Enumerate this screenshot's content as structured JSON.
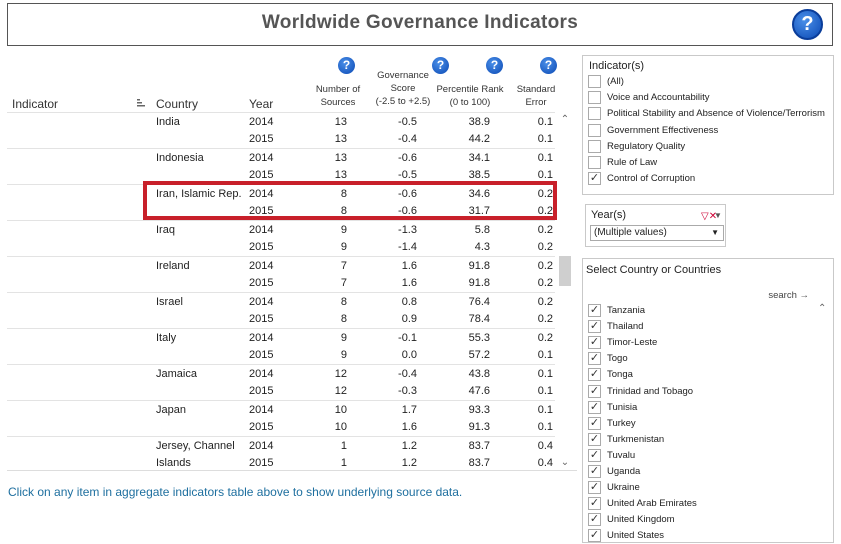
{
  "header": {
    "title": "Worldwide Governance Indicators",
    "help": "?"
  },
  "table": {
    "col_indicator": "Indicator",
    "col_country": "Country",
    "col_year": "Year",
    "col_num_sources": [
      "Number of",
      "Sources"
    ],
    "col_score": [
      "Governance",
      "Score",
      "(-2.5 to +2.5)"
    ],
    "col_pct": [
      "Percentile Rank",
      "(0 to 100)"
    ],
    "col_se": [
      "Standard",
      "Error"
    ],
    "rows": [
      {
        "country": "India",
        "year": "2014",
        "num": "13",
        "score": "-0.5",
        "pct": "38.9",
        "se": "0.1"
      },
      {
        "country": "",
        "year": "2015",
        "num": "13",
        "score": "-0.4",
        "pct": "44.2",
        "se": "0.1"
      },
      {
        "country": "Indonesia",
        "year": "2014",
        "num": "13",
        "score": "-0.6",
        "pct": "34.1",
        "se": "0.1"
      },
      {
        "country": "",
        "year": "2015",
        "num": "13",
        "score": "-0.5",
        "pct": "38.5",
        "se": "0.1"
      },
      {
        "country": "Iran, Islamic Rep.",
        "year": "2014",
        "num": "8",
        "score": "-0.6",
        "pct": "34.6",
        "se": "0.2"
      },
      {
        "country": "",
        "year": "2015",
        "num": "8",
        "score": "-0.6",
        "pct": "31.7",
        "se": "0.2"
      },
      {
        "country": "Iraq",
        "year": "2014",
        "num": "9",
        "score": "-1.3",
        "pct": "5.8",
        "se": "0.2"
      },
      {
        "country": "",
        "year": "2015",
        "num": "9",
        "score": "-1.4",
        "pct": "4.3",
        "se": "0.2"
      },
      {
        "country": "Ireland",
        "year": "2014",
        "num": "7",
        "score": "1.6",
        "pct": "91.8",
        "se": "0.2"
      },
      {
        "country": "",
        "year": "2015",
        "num": "7",
        "score": "1.6",
        "pct": "91.8",
        "se": "0.2"
      },
      {
        "country": "Israel",
        "year": "2014",
        "num": "8",
        "score": "0.8",
        "pct": "76.4",
        "se": "0.2"
      },
      {
        "country": "",
        "year": "2015",
        "num": "8",
        "score": "0.9",
        "pct": "78.4",
        "se": "0.2"
      },
      {
        "country": "Italy",
        "year": "2014",
        "num": "9",
        "score": "-0.1",
        "pct": "55.3",
        "se": "0.2"
      },
      {
        "country": "",
        "year": "2015",
        "num": "9",
        "score": "0.0",
        "pct": "57.2",
        "se": "0.1"
      },
      {
        "country": "Jamaica",
        "year": "2014",
        "num": "12",
        "score": "-0.4",
        "pct": "43.8",
        "se": "0.1"
      },
      {
        "country": "",
        "year": "2015",
        "num": "12",
        "score": "-0.3",
        "pct": "47.6",
        "se": "0.1"
      },
      {
        "country": "Japan",
        "year": "2014",
        "num": "10",
        "score": "1.7",
        "pct": "93.3",
        "se": "0.1"
      },
      {
        "country": "",
        "year": "2015",
        "num": "10",
        "score": "1.6",
        "pct": "91.3",
        "se": "0.1"
      },
      {
        "country": "Jersey, Channel",
        "year": "2014",
        "num": "1",
        "score": "1.2",
        "pct": "83.7",
        "se": "0.4"
      },
      {
        "country": "Islands",
        "year": "2015",
        "num": "1",
        "score": "1.2",
        "pct": "83.7",
        "se": "0.4"
      }
    ]
  },
  "footer": {
    "link": "Click on any item in aggregate indicators table above to show underlying source data."
  },
  "indicators": {
    "title": "Indicator(s)",
    "items": [
      {
        "label": "(All)",
        "checked": ""
      },
      {
        "label": "Voice and Accountability",
        "checked": ""
      },
      {
        "label": "Political Stability and Absence of Violence/Terrorism",
        "checked": ""
      },
      {
        "label": "Government Effectiveness",
        "checked": ""
      },
      {
        "label": "Regulatory Quality",
        "checked": ""
      },
      {
        "label": "Rule of Law",
        "checked": ""
      },
      {
        "label": "Control of Corruption",
        "checked": "✓"
      }
    ]
  },
  "years": {
    "title": "Year(s)",
    "value": "(Multiple values)"
  },
  "countries": {
    "title": "Select Country or Countries",
    "search": "search →",
    "items": [
      {
        "label": "Tanzania",
        "checked": "✓"
      },
      {
        "label": "Thailand",
        "checked": "✓"
      },
      {
        "label": "Timor-Leste",
        "checked": "✓"
      },
      {
        "label": "Togo",
        "checked": "✓"
      },
      {
        "label": "Tonga",
        "checked": "✓"
      },
      {
        "label": "Trinidad and Tobago",
        "checked": "✓"
      },
      {
        "label": "Tunisia",
        "checked": "✓"
      },
      {
        "label": "Turkey",
        "checked": "✓"
      },
      {
        "label": "Turkmenistan",
        "checked": "✓"
      },
      {
        "label": "Tuvalu",
        "checked": "✓"
      },
      {
        "label": "Uganda",
        "checked": "✓"
      },
      {
        "label": "Ukraine",
        "checked": "✓"
      },
      {
        "label": "United Arab Emirates",
        "checked": "✓"
      },
      {
        "label": "United Kingdom",
        "checked": "✓"
      },
      {
        "label": "United States",
        "checked": "✓"
      }
    ]
  },
  "colors": {
    "highlight": "#c8202a",
    "link": "#1e6f9f",
    "help_blue": "#0b49b4"
  }
}
